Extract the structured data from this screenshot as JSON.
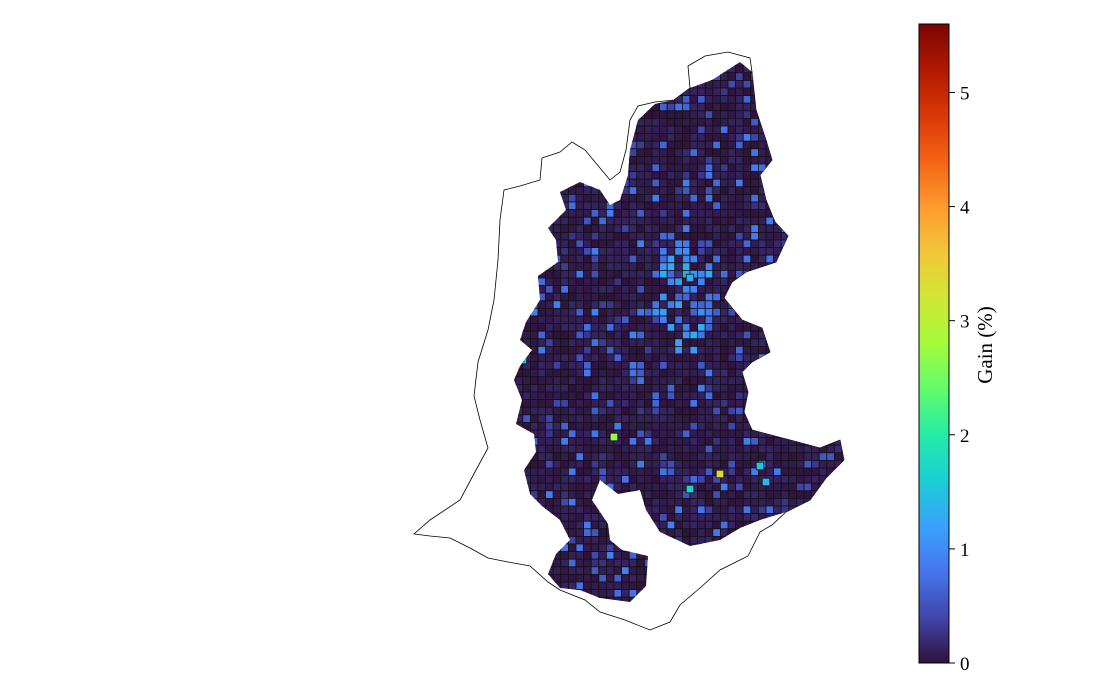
{
  "map": {
    "type": "choropleth-grid",
    "colorbar": {
      "label": "Gain (%)",
      "min": 0,
      "max": 5.6,
      "ticks": [
        0,
        1,
        2,
        3,
        4,
        5
      ],
      "colormap": "turbo",
      "stops": [
        "#30123b",
        "#4145ab",
        "#4675ed",
        "#39a2fc",
        "#1bcfd4",
        "#24eca6",
        "#61fc6c",
        "#a4fc3b",
        "#d1e834",
        "#f3c63a",
        "#fe9b2d",
        "#f36315",
        "#d93807",
        "#b11901",
        "#7a0403"
      ]
    },
    "cell_color_base": "#2a1345",
    "cell_edge_color": "#111111",
    "outline_color": "#000000",
    "highlight_cells": [
      {
        "value": 3.4
      },
      {
        "value": 2.7
      },
      {
        "value": 1.7
      },
      {
        "value": 1.5
      },
      {
        "value": 1.4
      },
      {
        "value": 1.3
      },
      {
        "value": 1.3
      }
    ]
  }
}
